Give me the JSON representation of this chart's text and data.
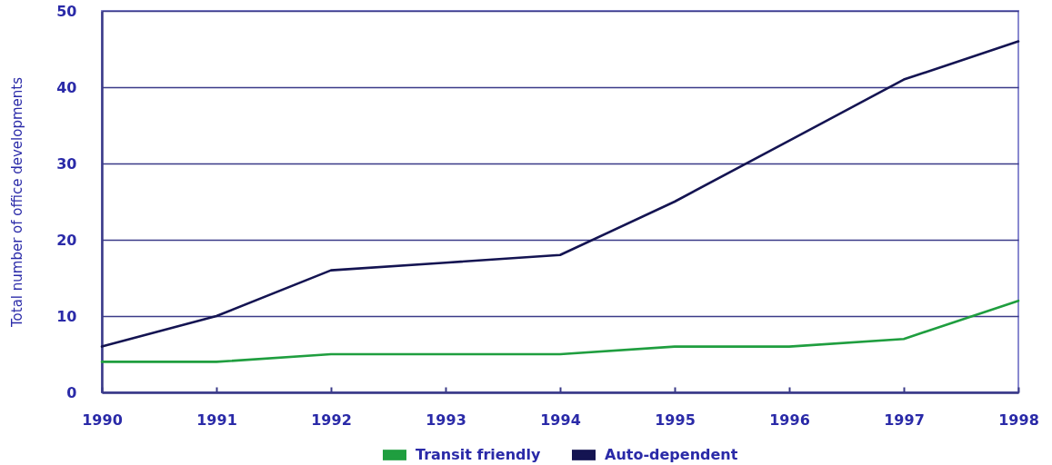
{
  "chart_data": {
    "type": "line",
    "ylabel": "Total number of office developments",
    "x": [
      1990,
      1991,
      1992,
      1993,
      1994,
      1995,
      1996,
      1997,
      1998
    ],
    "series": [
      {
        "name": "Transit friendly",
        "color": "#1f9e3f",
        "values": [
          4,
          4,
          5,
          5,
          5,
          6,
          6,
          7,
          12
        ]
      },
      {
        "name": "Auto-dependent",
        "color": "#141452",
        "values": [
          6,
          10,
          16,
          17,
          18,
          25,
          33,
          41,
          46
        ]
      }
    ],
    "xlim": [
      1990,
      1998
    ],
    "xticks": [
      1990,
      1991,
      1992,
      1993,
      1994,
      1995,
      1996,
      1997,
      1998
    ],
    "ylim": [
      0,
      50
    ],
    "yticks": [
      0,
      10,
      20,
      30,
      40,
      50
    ],
    "grid": "y",
    "legend": "bottom",
    "line_style": "solid"
  }
}
